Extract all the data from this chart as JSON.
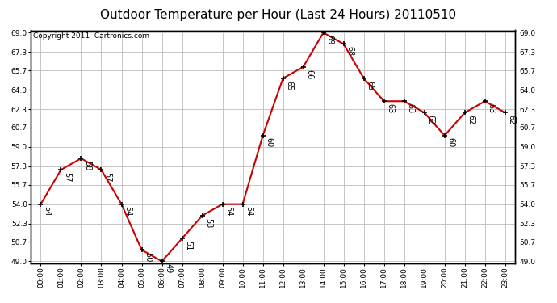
{
  "title": "Outdoor Temperature per Hour (Last 24 Hours) 20110510",
  "copyright": "Copyright 2011  Cartronics.com",
  "hours": [
    "00:00",
    "01:00",
    "02:00",
    "03:00",
    "04:00",
    "05:00",
    "06:00",
    "07:00",
    "08:00",
    "09:00",
    "10:00",
    "11:00",
    "12:00",
    "13:00",
    "14:00",
    "15:00",
    "16:00",
    "17:00",
    "18:00",
    "19:00",
    "20:00",
    "21:00",
    "22:00",
    "23:00"
  ],
  "temps": [
    54,
    57,
    58,
    57,
    54,
    50,
    49,
    51,
    53,
    54,
    54,
    60,
    65,
    66,
    69,
    68,
    65,
    63,
    63,
    62,
    60,
    62,
    63,
    62
  ],
  "line_color": "#cc0000",
  "marker_color": "#000000",
  "bg_color": "#ffffff",
  "grid_color": "#bbbbbb",
  "ylim_min": 49.0,
  "ylim_max": 69.0,
  "yticks": [
    49.0,
    50.7,
    52.3,
    54.0,
    55.7,
    57.3,
    59.0,
    60.7,
    62.3,
    64.0,
    65.7,
    67.3,
    69.0
  ],
  "title_fontsize": 11,
  "copyright_fontsize": 6.5,
  "label_fontsize": 7,
  "tick_fontsize": 6.5
}
